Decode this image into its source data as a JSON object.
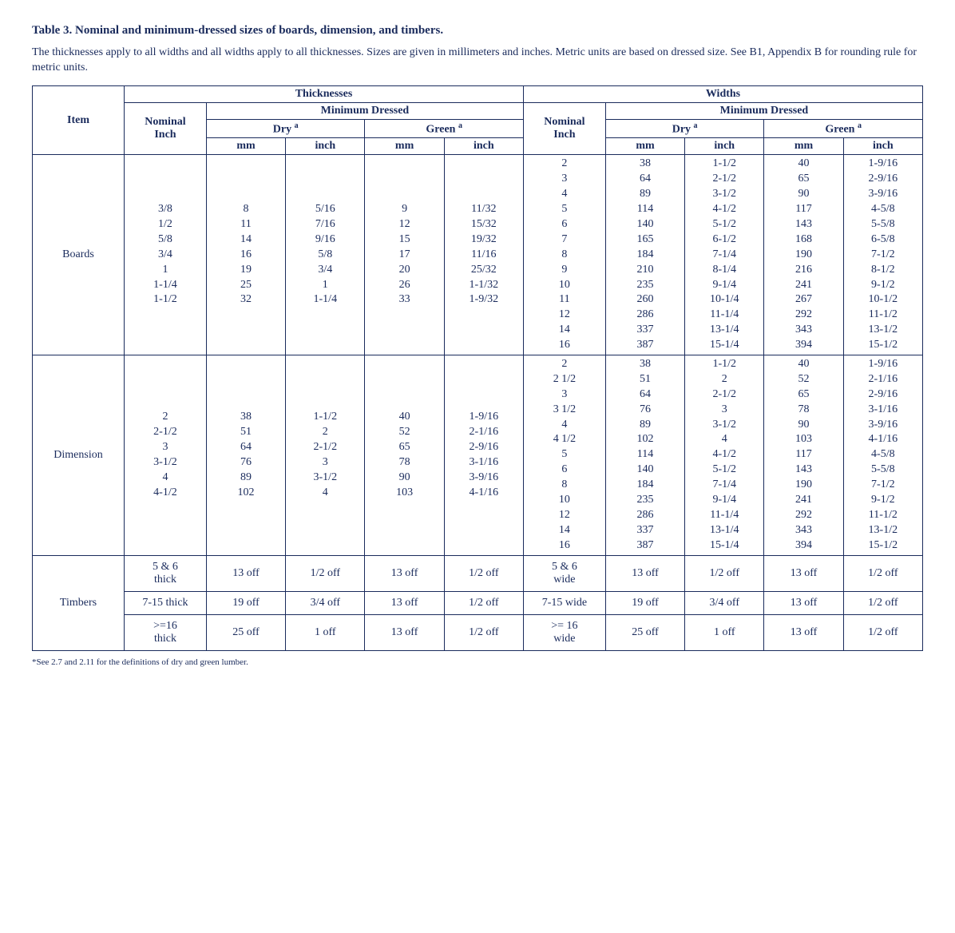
{
  "title": "Table 3. Nominal and minimum-dressed sizes of boards, dimension, and timbers.",
  "intro": "The thicknesses apply to all widths and all widths apply to all thicknesses. Sizes are given in millimeters and inches. Metric units are based on dressed size. See B1, Appendix B for rounding rule for metric units.",
  "footnote": "*See 2.7 and 2.11 for the definitions of dry and green lumber.",
  "headers": {
    "item": "Item",
    "thicknesses": "Thicknesses",
    "widths": "Widths",
    "nominal_inch": "Nominal\nInch",
    "min_dressed": "Minimum Dressed",
    "dry": "Dry",
    "green": "Green",
    "mm": "mm",
    "inch": "inch",
    "sup_a": "a"
  },
  "items": {
    "boards": "Boards",
    "dimension": "Dimension",
    "timbers": "Timbers"
  },
  "boards": {
    "thick": {
      "nominal": [
        "3/8",
        "1/2",
        "5/8",
        "3/4",
        "1",
        "1-1/4",
        "1-1/2"
      ],
      "dry_mm": [
        "8",
        "11",
        "14",
        "16",
        "19",
        "25",
        "32"
      ],
      "dry_inch": [
        "5/16",
        "7/16",
        "9/16",
        "5/8",
        "3/4",
        "1",
        "1-1/4"
      ],
      "green_mm": [
        "9",
        "12",
        "15",
        "17",
        "20",
        "26",
        "33"
      ],
      "green_inch": [
        "11/32",
        "15/32",
        "19/32",
        "11/16",
        "25/32",
        "1-1/32",
        "1-9/32"
      ]
    },
    "width": {
      "nominal": [
        "2",
        "3",
        "4",
        "5",
        "6",
        "7",
        "8",
        "9",
        "10",
        "11",
        "12",
        "14",
        "16"
      ],
      "dry_mm": [
        "38",
        "64",
        "89",
        "114",
        "140",
        "165",
        "184",
        "210",
        "235",
        "260",
        "286",
        "337",
        "387"
      ],
      "dry_inch": [
        "1-1/2",
        "2-1/2",
        "3-1/2",
        "4-1/2",
        "5-1/2",
        "6-1/2",
        "7-1/4",
        "8-1/4",
        "9-1/4",
        "10-1/4",
        "11-1/4",
        "13-1/4",
        "15-1/4"
      ],
      "green_mm": [
        "40",
        "65",
        "90",
        "117",
        "143",
        "168",
        "190",
        "216",
        "241",
        "267",
        "292",
        "343",
        "394"
      ],
      "green_inch": [
        "1-9/16",
        "2-9/16",
        "3-9/16",
        "4-5/8",
        "5-5/8",
        "6-5/8",
        "7-1/2",
        "8-1/2",
        "9-1/2",
        "10-1/2",
        "11-1/2",
        "13-1/2",
        "15-1/2"
      ]
    }
  },
  "dimension": {
    "thick": {
      "nominal": [
        "2",
        "2-1/2",
        "3",
        "3-1/2",
        "4",
        "4-1/2"
      ],
      "dry_mm": [
        "38",
        "51",
        "64",
        "76",
        "89",
        "102"
      ],
      "dry_inch": [
        "1-1/2",
        "2",
        "2-1/2",
        "3",
        "3-1/2",
        "4"
      ],
      "green_mm": [
        "40",
        "52",
        "65",
        "78",
        "90",
        "103"
      ],
      "green_inch": [
        "1-9/16",
        "2-1/16",
        "2-9/16",
        "3-1/16",
        "3-9/16",
        "4-1/16"
      ]
    },
    "width": {
      "nominal": [
        "2",
        "2 1/2",
        "3",
        "3 1/2",
        "4",
        "4 1/2",
        "5",
        "6",
        "8",
        "10",
        "12",
        "14",
        "16"
      ],
      "dry_mm": [
        "38",
        "51",
        "64",
        "76",
        "89",
        "102",
        "114",
        "140",
        "184",
        "235",
        "286",
        "337",
        "387"
      ],
      "dry_inch": [
        "1-1/2",
        "2",
        "2-1/2",
        "3",
        "3-1/2",
        "4",
        "4-1/2",
        "5-1/2",
        "7-1/4",
        "9-1/4",
        "11-1/4",
        "13-1/4",
        "15-1/4"
      ],
      "green_mm": [
        "40",
        "52",
        "65",
        "78",
        "90",
        "103",
        "117",
        "143",
        "190",
        "241",
        "292",
        "343",
        "394"
      ],
      "green_inch": [
        "1-9/16",
        "2-1/16",
        "2-9/16",
        "3-1/16",
        "3-9/16",
        "4-1/16",
        "4-5/8",
        "5-5/8",
        "7-1/2",
        "9-1/2",
        "11-1/2",
        "13-1/2",
        "15-1/2"
      ]
    }
  },
  "timbers": [
    {
      "thick_nom": "5 & 6\nthick",
      "t_dry_mm": "13 off",
      "t_dry_in": "1/2 off",
      "t_grn_mm": "13 off",
      "t_grn_in": "1/2 off",
      "width_nom": "5 & 6\nwide",
      "w_dry_mm": "13 off",
      "w_dry_in": "1/2 off",
      "w_grn_mm": "13 off",
      "w_grn_in": "1/2 off"
    },
    {
      "thick_nom": "7-15 thick",
      "t_dry_mm": "19 off",
      "t_dry_in": "3/4 off",
      "t_grn_mm": "13 off",
      "t_grn_in": "1/2 off",
      "width_nom": "7-15 wide",
      "w_dry_mm": "19 off",
      "w_dry_in": "3/4 off",
      "w_grn_mm": "13 off",
      "w_grn_in": "1/2 off"
    },
    {
      "thick_nom": ">=16\nthick",
      "t_dry_mm": "25 off",
      "t_dry_in": "1 off",
      "t_grn_mm": "13 off",
      "t_grn_in": "1/2 off",
      "width_nom": ">= 16\nwide",
      "w_dry_mm": "25 off",
      "w_dry_in": "1 off",
      "w_grn_mm": "13 off",
      "w_grn_in": "1/2 off"
    }
  ],
  "colors": {
    "text": "#1a2b5c",
    "border": "#1a2b5c",
    "background": "#ffffff"
  },
  "column_widths_percent": {
    "item": 9.5,
    "nominal": 8.5,
    "unit": 8.2
  }
}
